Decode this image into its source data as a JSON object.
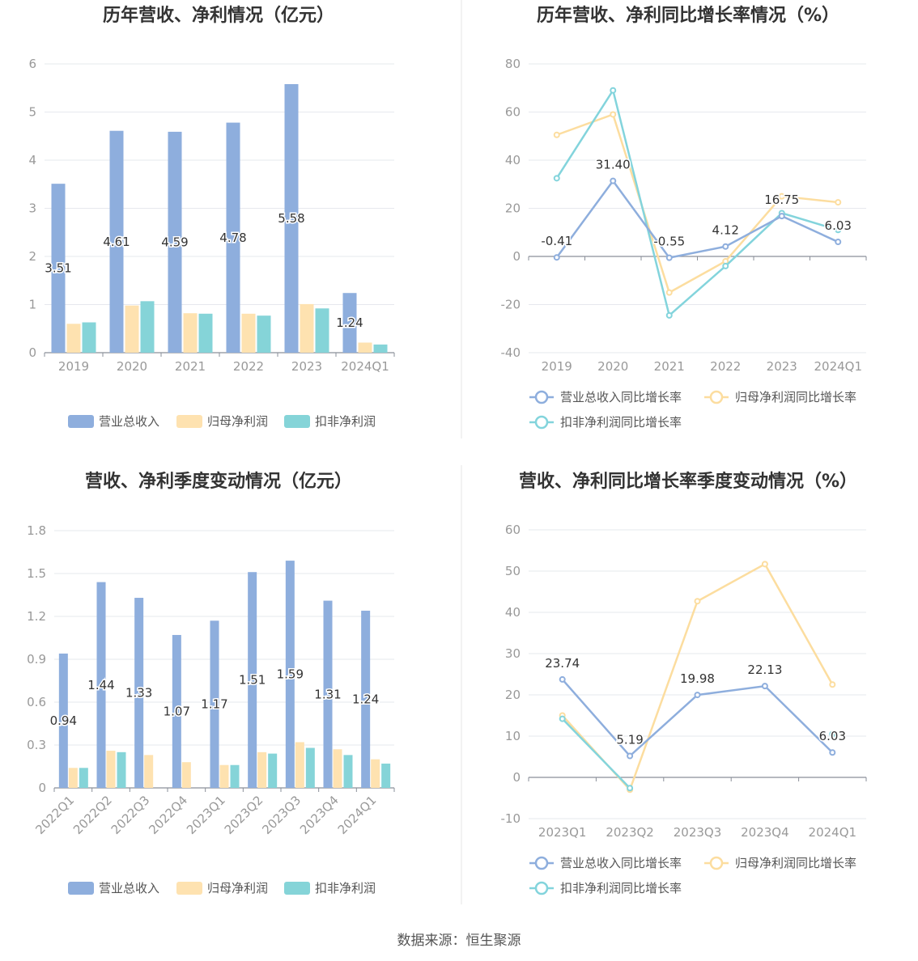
{
  "footer": {
    "source": "数据来源：恒生聚源"
  },
  "colors": {
    "revenue": "#8eaedd",
    "net_profit": "#fee2b0",
    "deducted_profit": "#85d4d8",
    "revenue_line": "#8eaedd",
    "net_profit_line": "#fcdd9f",
    "deducted_profit_line": "#83d4dc",
    "grid": "#e6e8ee",
    "axis": "#8a8f99",
    "tick_text": "#999999",
    "title_text": "#333333",
    "label_text": "#333333",
    "divider": "#e5e5e5"
  },
  "chart_data": [
    {
      "type": "bar",
      "title": "历年营收、净利情况（亿元）",
      "categories": [
        "2019",
        "2020",
        "2021",
        "2022",
        "2023",
        "2024Q1"
      ],
      "ylim": [
        0,
        6
      ],
      "yticks": [
        "0",
        "1",
        "2",
        "3",
        "4",
        "5",
        "6"
      ],
      "grid": true,
      "legend_position": "bottom",
      "series": [
        {
          "name": "营业总收入",
          "values": [
            3.51,
            4.61,
            4.59,
            4.78,
            5.58,
            1.24
          ],
          "labels": [
            "3.51",
            "4.61",
            "4.59",
            "4.78",
            "5.58",
            "1.24"
          ]
        },
        {
          "name": "归母净利润",
          "values": [
            0.6,
            0.98,
            0.82,
            0.81,
            1.01,
            0.21
          ]
        },
        {
          "name": "扣非净利润",
          "values": [
            0.63,
            1.07,
            0.81,
            0.77,
            0.92,
            0.17
          ]
        }
      ]
    },
    {
      "type": "line",
      "title": "历年营收、净利同比增长率情况（%）",
      "categories": [
        "2019",
        "2020",
        "2021",
        "2022",
        "2023",
        "2024Q1"
      ],
      "ylim": [
        -40,
        80
      ],
      "yticks": [
        "-40",
        "-20",
        "0",
        "20",
        "40",
        "60",
        "80"
      ],
      "grid": true,
      "legend_position": "bottom",
      "series": [
        {
          "name": "营业总收入同比增长率",
          "values": [
            -0.41,
            31.4,
            -0.55,
            4.12,
            16.75,
            6.03
          ],
          "labels": [
            "-0.41",
            "31.40",
            "-0.55",
            "4.12",
            "16.75",
            "6.03"
          ]
        },
        {
          "name": "归母净利润同比增长率",
          "values": [
            50.5,
            59,
            -15,
            -2,
            25,
            22.5
          ]
        },
        {
          "name": "扣非净利润同比增长率",
          "values": [
            32.5,
            69,
            -24.5,
            -4,
            18,
            11
          ]
        }
      ]
    },
    {
      "type": "bar",
      "title": "营收、净利季度变动情况（亿元）",
      "categories": [
        "2022Q1",
        "2022Q2",
        "2022Q3",
        "2022Q4",
        "2023Q1",
        "2023Q2",
        "2023Q3",
        "2023Q4",
        "2024Q1"
      ],
      "ylim": [
        0,
        1.8
      ],
      "yticks": [
        "0",
        "0.3",
        "0.6",
        "0.9",
        "1.2",
        "1.5",
        "1.8"
      ],
      "grid": true,
      "legend_position": "bottom",
      "series": [
        {
          "name": "营业总收入",
          "values": [
            0.94,
            1.44,
            1.33,
            1.07,
            1.17,
            1.51,
            1.59,
            1.31,
            1.24
          ],
          "labels": [
            "0.94",
            "1.44",
            "1.33",
            "1.07",
            "1.17",
            "1.51",
            "1.59",
            "1.31",
            "1.24"
          ]
        },
        {
          "name": "归母净利润",
          "values": [
            0.14,
            0.26,
            0.23,
            0.18,
            0.16,
            0.25,
            0.32,
            0.27,
            0.2
          ]
        },
        {
          "name": "扣非净利润",
          "values": [
            0.14,
            0.25,
            null,
            null,
            0.16,
            0.24,
            0.28,
            0.23,
            0.17
          ]
        }
      ]
    },
    {
      "type": "line",
      "title": "营收、净利同比增长率季度变动情况（%）",
      "categories": [
        "2023Q1",
        "2023Q2",
        "2023Q3",
        "2023Q4",
        "2024Q1"
      ],
      "ylim": [
        -10,
        60
      ],
      "yticks": [
        "-10",
        "0",
        "10",
        "20",
        "30",
        "40",
        "50",
        "60"
      ],
      "grid": true,
      "legend_position": "bottom",
      "series": [
        {
          "name": "营业总收入同比增长率",
          "values": [
            23.74,
            5.19,
            19.98,
            22.13,
            6.03
          ],
          "labels": [
            "23.74",
            "5.19",
            "19.98",
            "22.13",
            "6.03"
          ]
        },
        {
          "name": "归母净利润同比增长率",
          "values": [
            15,
            -3,
            42.7,
            51.7,
            22.5
          ]
        },
        {
          "name": "扣非净利润同比增长率",
          "values": [
            14.2,
            -2.6,
            null,
            null,
            10.5
          ]
        }
      ]
    }
  ]
}
